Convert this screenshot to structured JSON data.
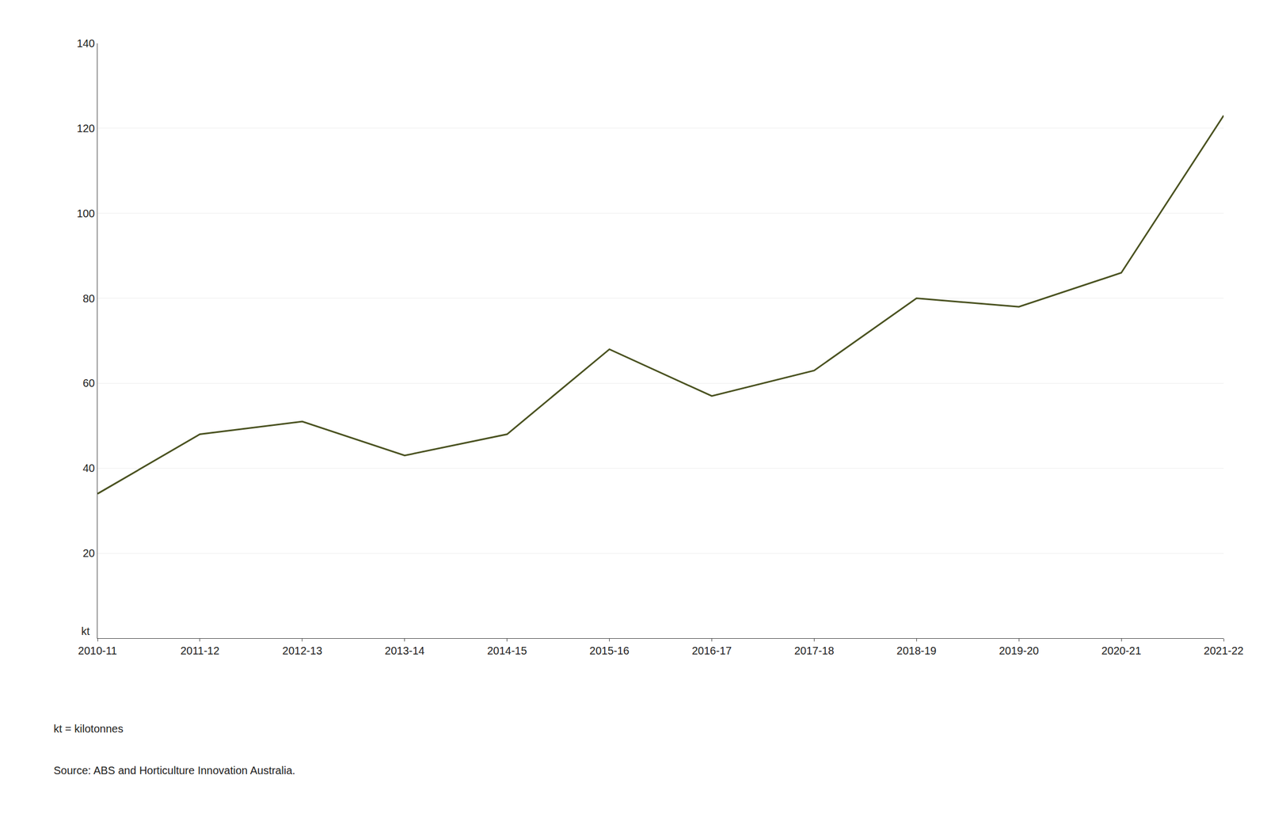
{
  "chart_data": {
    "type": "line",
    "categories": [
      "2010-11",
      "2011-12",
      "2012-13",
      "2013-14",
      "2014-15",
      "2015-16",
      "2016-17",
      "2017-18",
      "2018-19",
      "2019-20",
      "2020-21",
      "2021-22"
    ],
    "values": [
      34,
      48,
      51,
      43,
      48,
      68,
      57,
      63,
      80,
      78,
      86,
      123
    ],
    "color": "#4a5220",
    "ylim": [
      0,
      140
    ],
    "yticks": [
      20,
      40,
      60,
      80,
      100,
      120,
      140
    ],
    "y_label": "kt",
    "annotations": [
      "kt = kilotonnes",
      "Source: ABS and Horticulture Innovation Australia."
    ],
    "grid": true
  }
}
